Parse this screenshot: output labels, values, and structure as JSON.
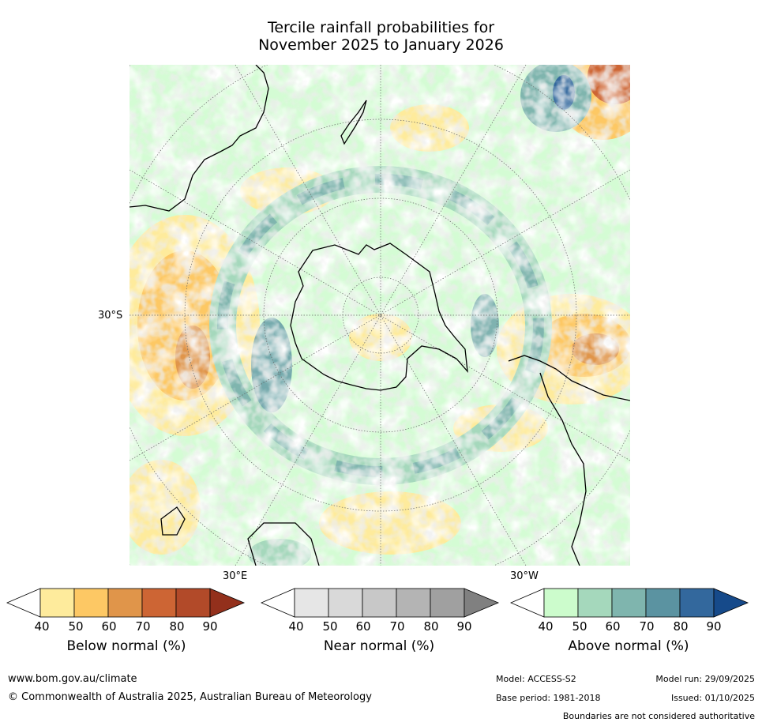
{
  "title": {
    "line1": "Tercile rainfall probabilities for",
    "line2": "November 2025 to January 2026"
  },
  "map": {
    "lat_label": "30°S",
    "lon_label_east": "30°E",
    "lon_label_west": "30°W"
  },
  "legends": [
    {
      "name": "below",
      "label": "Below normal (%)",
      "ticks": [
        "40",
        "50",
        "60",
        "70",
        "80",
        "90"
      ],
      "colors": [
        "#ffffff",
        "#feeb9c",
        "#fdc864",
        "#e0954a",
        "#cd6534",
        "#b24a29",
        "#93301c"
      ]
    },
    {
      "name": "near",
      "label": "Near normal (%)",
      "ticks": [
        "40",
        "50",
        "60",
        "70",
        "80",
        "90"
      ],
      "colors": [
        "#ffffff",
        "#e6e6e6",
        "#d9d9d9",
        "#c8c8c8",
        "#b4b4b4",
        "#a0a0a0",
        "#808080"
      ]
    },
    {
      "name": "above",
      "label": "Above normal (%)",
      "ticks": [
        "40",
        "50",
        "60",
        "70",
        "80",
        "90"
      ],
      "colors": [
        "#ffffff",
        "#ccfccc",
        "#a5d8bc",
        "#7fb5ae",
        "#5b93a1",
        "#33689d",
        "#164a8a"
      ]
    }
  ],
  "footer": {
    "website": "www.bom.gov.au/climate",
    "copyright": "© Commonwealth of Australia 2025, Australian Bureau of Meteorology",
    "model": "Model: ACCESS-S2",
    "base_period": "Base period: 1981-2018",
    "model_run": "Model run: 29/09/2025",
    "issued": "Issued: 01/10/2025",
    "disclaimer": "Boundaries are not considered authoritative"
  }
}
